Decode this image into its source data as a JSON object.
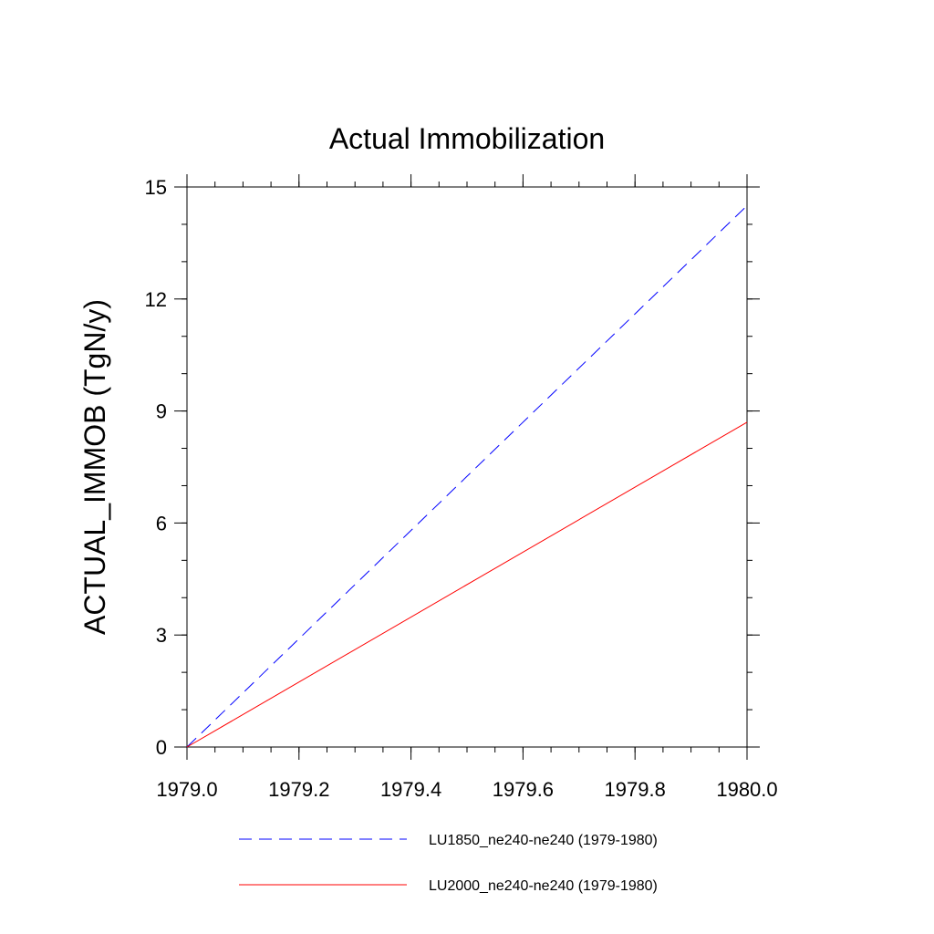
{
  "chart_data": {
    "type": "line",
    "title": "Actual Immobilization",
    "xlabel": "",
    "ylabel": "ACTUAL_IMMOB  (TgN/y)",
    "xlim": [
      1979.0,
      1980.0
    ],
    "ylim": [
      0,
      15
    ],
    "x_ticks": [
      1979.0,
      1979.2,
      1979.4,
      1979.6,
      1979.8,
      1980.0
    ],
    "x_tick_labels": [
      "1979.0",
      "1979.2",
      "1979.4",
      "1979.6",
      "1979.8",
      "1980.0"
    ],
    "y_ticks": [
      0,
      3,
      6,
      9,
      12,
      15
    ],
    "y_tick_labels": [
      "0",
      "3",
      "6",
      "9",
      "12",
      "15"
    ],
    "grid": false,
    "legend_position": "bottom",
    "series": [
      {
        "name": "LU1850_ne240-ne240 (1979-1980)",
        "color": "#0000ff",
        "style": "dashed",
        "x": [
          1979.0,
          1980.0
        ],
        "y": [
          0.0,
          14.5
        ]
      },
      {
        "name": "LU2000_ne240-ne240 (1979-1980)",
        "color": "#ff0000",
        "style": "solid",
        "x": [
          1979.0,
          1980.0
        ],
        "y": [
          0.0,
          8.7
        ]
      }
    ]
  }
}
